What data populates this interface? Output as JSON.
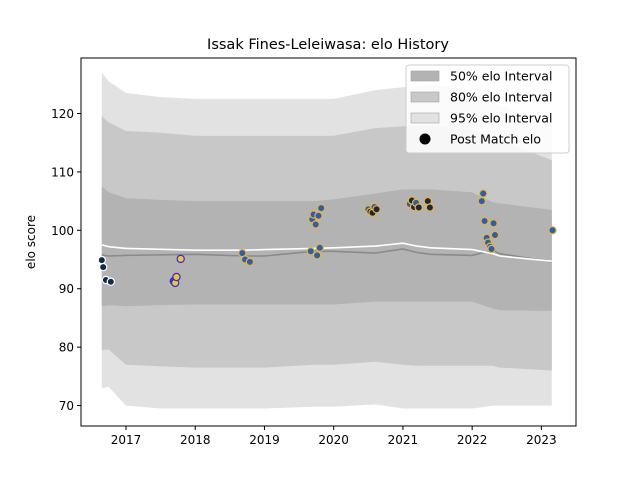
{
  "chart_data": {
    "type": "line",
    "title": "Issak Fines-Leleiwasa: elo History",
    "xlabel": "",
    "ylabel": "elo score",
    "xlim": [
      2016.35,
      2023.5
    ],
    "ylim": [
      66.5,
      129.5
    ],
    "xticks": [
      2017,
      2018,
      2019,
      2020,
      2021,
      2022,
      2023
    ],
    "yticks": [
      70,
      80,
      90,
      100,
      110,
      120
    ],
    "legend_position": "top-right",
    "legend": [
      {
        "label": "50% elo Interval",
        "kind": "band",
        "color": "#b3b3b3"
      },
      {
        "label": "80% elo Interval",
        "kind": "band",
        "color": "#c8c8c8"
      },
      {
        "label": "95% elo Interval",
        "kind": "band",
        "color": "#e2e2e2"
      },
      {
        "label": "Post Match elo",
        "kind": "marker",
        "color": "#000000"
      }
    ],
    "bands": {
      "x": [
        2016.65,
        2016.75,
        2017.0,
        2017.5,
        2018.0,
        2018.7,
        2019.0,
        2019.7,
        2020.0,
        2020.6,
        2021.0,
        2021.2,
        2021.4,
        2022.0,
        2022.3,
        2022.4,
        2023.15
      ],
      "p95_lo": [
        73.0,
        73.2,
        70.0,
        69.5,
        69.5,
        69.5,
        69.5,
        69.8,
        69.8,
        70.2,
        69.5,
        69.5,
        69.5,
        69.5,
        70.0,
        70.0,
        70.0
      ],
      "p95_hi": [
        127.0,
        125.5,
        123.5,
        122.8,
        122.5,
        122.5,
        122.5,
        122.5,
        122.5,
        124.0,
        124.5,
        124.5,
        125.0,
        124.0,
        121.8,
        121.5,
        118.0
      ],
      "p80_lo": [
        79.5,
        79.6,
        77.0,
        76.7,
        76.5,
        76.5,
        76.5,
        77.0,
        77.0,
        77.5,
        77.0,
        76.8,
        76.8,
        76.8,
        76.8,
        76.5,
        76.0
      ],
      "p80_hi": [
        119.5,
        118.5,
        117.0,
        116.7,
        116.2,
        116.2,
        116.2,
        116.2,
        116.2,
        117.5,
        117.8,
        117.8,
        118.0,
        117.2,
        115.8,
        115.5,
        112.0
      ],
      "p50_lo": [
        87.0,
        87.2,
        87.0,
        87.2,
        87.3,
        87.3,
        87.3,
        87.3,
        87.3,
        87.8,
        87.8,
        87.8,
        87.8,
        87.8,
        86.6,
        86.3,
        86.2
      ],
      "p50_hi": [
        107.5,
        106.5,
        105.5,
        105.2,
        105.0,
        105.0,
        105.0,
        105.0,
        105.3,
        106.3,
        107.0,
        107.0,
        107.0,
        106.5,
        104.8,
        104.6,
        103.5
      ]
    },
    "series": [
      {
        "x": [
          2016.65,
          2016.75,
          2017.0,
          2018.0,
          2018.7,
          2019.0,
          2019.7,
          2020.0,
          2020.6,
          2021.0,
          2021.2,
          2021.4,
          2022.0,
          2022.3,
          2022.4,
          2023.15
        ],
        "values": [
          95.8,
          95.6,
          95.7,
          95.9,
          95.6,
          95.6,
          96.4,
          96.4,
          96.1,
          96.8,
          96.2,
          95.9,
          95.7,
          96.6,
          96.0,
          94.6
        ],
        "color": "#8a8a8a"
      },
      {
        "x": [
          2016.65,
          2016.75,
          2017.0,
          2018.0,
          2018.7,
          2019.0,
          2019.7,
          2020.0,
          2020.6,
          2021.0,
          2021.2,
          2021.4,
          2022.0,
          2022.3,
          2022.4,
          2023.15
        ],
        "values": [
          97.5,
          97.2,
          96.9,
          96.6,
          96.6,
          96.7,
          96.9,
          97.0,
          97.3,
          97.8,
          97.3,
          97.0,
          96.7,
          96.0,
          95.6,
          94.7
        ],
        "color": "#ffffff"
      }
    ],
    "points": [
      {
        "x": 2016.65,
        "y": 94.9,
        "fill": "#0f2a4a",
        "edge": "#ffffff"
      },
      {
        "x": 2016.67,
        "y": 93.7,
        "fill": "#0f2a4a",
        "edge": "#ffffff"
      },
      {
        "x": 2016.71,
        "y": 91.5,
        "fill": "#0f2a4a",
        "edge": "#ffffff"
      },
      {
        "x": 2016.78,
        "y": 91.2,
        "fill": "#0f2a4a",
        "edge": "#ffffff"
      },
      {
        "x": 2017.69,
        "y": 91.3,
        "fill": "#2a4f9c",
        "edge": "#3b2cc0"
      },
      {
        "x": 2017.71,
        "y": 91.0,
        "fill": "#e8c44a",
        "edge": "#3b2cc0"
      },
      {
        "x": 2017.73,
        "y": 92.0,
        "fill": "#e8c44a",
        "edge": "#3b2cc0"
      },
      {
        "x": 2017.79,
        "y": 95.1,
        "fill": "#e8c44a",
        "edge": "#3b2cc0"
      },
      {
        "x": 2018.68,
        "y": 96.1,
        "fill": "#2a60a8",
        "edge": "#e8b04a"
      },
      {
        "x": 2018.72,
        "y": 95.0,
        "fill": "#2a60a8",
        "edge": "#e8b04a"
      },
      {
        "x": 2018.79,
        "y": 94.6,
        "fill": "#2a60a8",
        "edge": "#e8b04a"
      },
      {
        "x": 2019.67,
        "y": 96.4,
        "fill": "#2a60a8",
        "edge": "#e8b04a"
      },
      {
        "x": 2019.69,
        "y": 101.9,
        "fill": "#2a60a8",
        "edge": "#e8b04a"
      },
      {
        "x": 2019.71,
        "y": 102.7,
        "fill": "#2a60a8",
        "edge": "#e8b04a"
      },
      {
        "x": 2019.74,
        "y": 101.0,
        "fill": "#2a60a8",
        "edge": "#e8b04a"
      },
      {
        "x": 2019.76,
        "y": 95.7,
        "fill": "#2a60a8",
        "edge": "#e8b04a"
      },
      {
        "x": 2019.78,
        "y": 102.5,
        "fill": "#2a60a8",
        "edge": "#e8b04a"
      },
      {
        "x": 2019.8,
        "y": 97.0,
        "fill": "#2a60a8",
        "edge": "#e8b04a"
      },
      {
        "x": 2019.82,
        "y": 103.8,
        "fill": "#2a60a8",
        "edge": "#e8b04a"
      },
      {
        "x": 2020.5,
        "y": 103.6,
        "fill": "#2a60a8",
        "edge": "#e8b04a"
      },
      {
        "x": 2020.53,
        "y": 103.2,
        "fill": "#1a2a3a",
        "edge": "#e8b04a"
      },
      {
        "x": 2020.56,
        "y": 103.0,
        "fill": "#1a2a3a",
        "edge": "#e8b04a"
      },
      {
        "x": 2020.59,
        "y": 104.0,
        "fill": "#2a60a8",
        "edge": "#e8b04a"
      },
      {
        "x": 2020.62,
        "y": 103.6,
        "fill": "#1a2a3a",
        "edge": "#e8b04a"
      },
      {
        "x": 2021.1,
        "y": 104.5,
        "fill": "#2a60a8",
        "edge": "#e8b04a"
      },
      {
        "x": 2021.13,
        "y": 105.1,
        "fill": "#1a2a3a",
        "edge": "#e8b04a"
      },
      {
        "x": 2021.16,
        "y": 104.0,
        "fill": "#1a2a3a",
        "edge": "#e8b04a"
      },
      {
        "x": 2021.19,
        "y": 104.7,
        "fill": "#2a60a8",
        "edge": "#e8b04a"
      },
      {
        "x": 2021.23,
        "y": 103.9,
        "fill": "#1a2a3a",
        "edge": "#e8b04a"
      },
      {
        "x": 2021.36,
        "y": 105.0,
        "fill": "#1a2a3a",
        "edge": "#e8b04a"
      },
      {
        "x": 2021.39,
        "y": 103.9,
        "fill": "#1a2a3a",
        "edge": "#e8b04a"
      },
      {
        "x": 2022.14,
        "y": 105.0,
        "fill": "#2a60a8",
        "edge": "#e8b04a"
      },
      {
        "x": 2022.16,
        "y": 106.3,
        "fill": "#2a60a8",
        "edge": "#e8b04a"
      },
      {
        "x": 2022.18,
        "y": 101.6,
        "fill": "#2a60a8",
        "edge": "#e8b04a"
      },
      {
        "x": 2022.21,
        "y": 98.7,
        "fill": "#2a60a8",
        "edge": "#e8b04a"
      },
      {
        "x": 2022.23,
        "y": 97.9,
        "fill": "#2a60a8",
        "edge": "#e8b04a"
      },
      {
        "x": 2022.26,
        "y": 97.2,
        "fill": "#2a60a8",
        "edge": "#e8b04a"
      },
      {
        "x": 2022.28,
        "y": 96.8,
        "fill": "#2a60a8",
        "edge": "#e8b04a"
      },
      {
        "x": 2022.31,
        "y": 101.2,
        "fill": "#2a60a8",
        "edge": "#e8b04a"
      },
      {
        "x": 2022.33,
        "y": 99.2,
        "fill": "#2a60a8",
        "edge": "#e8b04a"
      },
      {
        "x": 2023.16,
        "y": 100.0,
        "fill": "#2a60a8",
        "edge": "#e8b04a"
      }
    ]
  }
}
